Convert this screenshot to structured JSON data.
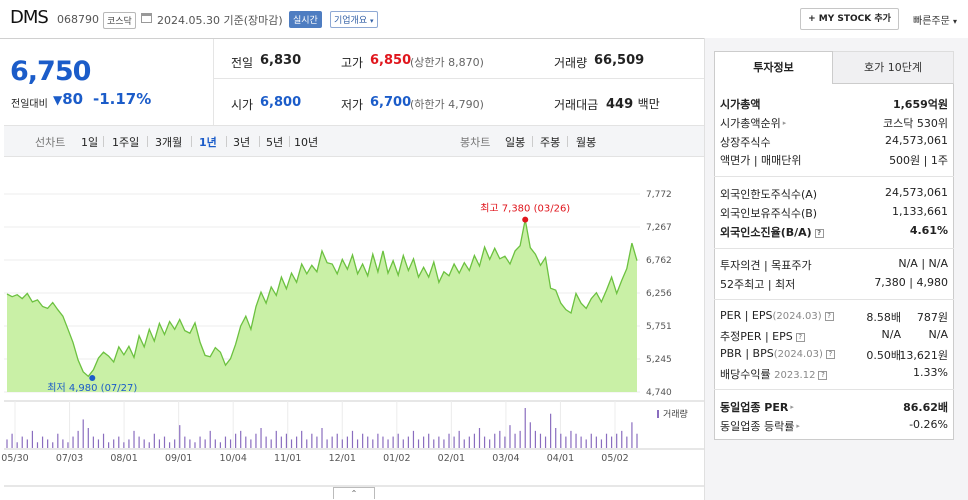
{
  "header": {
    "stock_name": "DMS",
    "stock_code": "068790",
    "market_badge": "코스닥",
    "date": "2024.05.30",
    "basis": "기준(장마감)",
    "realtime_badge": "실시간",
    "company_overview_label": "기업개요",
    "my_stock_button": "MY STOCK 추가",
    "quick_order_label": "빠른주문"
  },
  "price": {
    "current": "6,750",
    "change_label": "전일대비",
    "change_value": "80",
    "change_rate": "-1.17%"
  },
  "summary": {
    "prev_close_label": "전일",
    "prev_close": "6,830",
    "high_label": "고가",
    "high": "6,850",
    "upper_limit_label": "(상한가",
    "upper_limit": "8,870)",
    "volume_label": "거래량",
    "volume": "66,509",
    "open_label": "시가",
    "open": "6,800",
    "low_label": "저가",
    "low": "6,700",
    "lower_limit_label": "(하한가",
    "lower_limit": "4,790)",
    "amount_label": "거래대금",
    "amount": "449",
    "amount_unit": "백만"
  },
  "periods": {
    "line_label": "선차트",
    "line_options": [
      "1일",
      "1주일",
      "3개월",
      "1년",
      "3년",
      "5년",
      "10년"
    ],
    "selected": "1년",
    "candle_label": "봉차트",
    "candle_options": [
      "일봉",
      "주봉",
      "월봉"
    ]
  },
  "chart_data": {
    "type": "area",
    "x_tick_labels": [
      "05/30",
      "07/03",
      "08/01",
      "09/01",
      "10/04",
      "11/01",
      "12/01",
      "01/02",
      "02/01",
      "03/04",
      "04/01",
      "05/02"
    ],
    "y_ticks": [
      7772,
      7267,
      6762,
      6256,
      5751,
      5245,
      4740
    ],
    "ylim": [
      4740,
      7772
    ],
    "high_annotation": "최고 7,380 (03/26)",
    "low_annotation": "최저 4,980 (07/27)",
    "volume_label": "거래량",
    "prices": [
      6240,
      6200,
      6230,
      6170,
      6250,
      6120,
      6150,
      6050,
      6020,
      6110,
      6000,
      5900,
      5700,
      5500,
      5230,
      5050,
      4980,
      5080,
      5260,
      5350,
      5290,
      5200,
      5430,
      5310,
      5440,
      5270,
      5600,
      5430,
      5700,
      5520,
      5790,
      5620,
      5820,
      5700,
      5850,
      5680,
      5640,
      5800,
      5500,
      5300,
      5280,
      5420,
      5350,
      5150,
      5250,
      5470,
      5750,
      5900,
      5700,
      6050,
      6270,
      6100,
      6350,
      6220,
      6500,
      6320,
      6560,
      6420,
      6700,
      6550,
      6680,
      6580,
      6900,
      6720,
      6700,
      6550,
      6770,
      6620,
      6840,
      6550,
      6700,
      6520,
      6850,
      6580,
      6900,
      6560,
      6750,
      6530,
      6830,
      6600,
      6780,
      6500,
      6650,
      6500,
      6730,
      6420,
      6580,
      6520,
      6700,
      6560,
      6720,
      6600,
      6830,
      6670,
      6960,
      6770,
      6940,
      6780,
      6820,
      6700,
      6900,
      6980,
      7380,
      6950,
      6850,
      6680,
      6800,
      6330,
      6300,
      6100,
      6000,
      5950,
      6250,
      6100,
      6020,
      6170,
      6260,
      6120,
      6300,
      6500,
      6250,
      6450,
      6630,
      7020,
      6750
    ],
    "volumes": [
      3,
      5,
      2,
      4,
      3,
      6,
      2,
      4,
      3,
      2,
      5,
      3,
      2,
      4,
      6,
      10,
      7,
      4,
      3,
      5,
      2,
      3,
      4,
      2,
      3,
      6,
      4,
      3,
      2,
      5,
      3,
      4,
      2,
      3,
      8,
      4,
      3,
      2,
      4,
      3,
      6,
      3,
      2,
      4,
      3,
      5,
      6,
      4,
      3,
      5,
      7,
      4,
      3,
      6,
      4,
      5,
      3,
      4,
      6,
      3,
      5,
      4,
      7,
      3,
      4,
      5,
      3,
      4,
      6,
      3,
      5,
      4,
      3,
      5,
      4,
      3,
      4,
      5,
      3,
      4,
      6,
      3,
      4,
      5,
      3,
      4,
      3,
      5,
      4,
      6,
      3,
      4,
      5,
      7,
      4,
      3,
      5,
      6,
      4,
      8,
      5,
      6,
      14,
      9,
      6,
      5,
      4,
      12,
      7,
      5,
      4,
      6,
      5,
      4,
      3,
      5,
      4,
      3,
      5,
      4,
      5,
      6,
      4,
      9,
      5
    ]
  },
  "panel": {
    "tab_active": "투자정보",
    "tab_other": "호가 10단계",
    "rows": {
      "market_cap_label": "시가총액",
      "market_cap": "1,659억원",
      "market_cap_rank_label": "시가총액순위",
      "market_cap_rank": "코스닥 530위",
      "shares_label": "상장주식수",
      "shares": "24,573,061",
      "par_label": "액면가 | 매매단위",
      "par": "500원 | 1주",
      "foreign_limit_label": "외국인한도주식수(A)",
      "foreign_limit": "24,573,061",
      "foreign_hold_label": "외국인보유주식수(B)",
      "foreign_hold": "1,133,661",
      "foreign_ratio_label": "외국인소진율(B/A)",
      "foreign_ratio": "4.61%",
      "opinion_label": "투자의견 | 목표주가",
      "opinion": "N/A | N/A",
      "range52_label": "52주최고 | 최저",
      "range52": "7,380 | 4,980",
      "per_label": "PER | EPS",
      "per_period": "(2024.03)",
      "per": "8.58배",
      "eps": "787원",
      "est_label": "추정PER | EPS",
      "est_per": "N/A",
      "est_eps": "N/A",
      "pbr_label": "PBR | BPS",
      "pbr_period": "(2024.03)",
      "pbr": "0.50배",
      "bps": "13,621원",
      "div_label": "배당수익률",
      "div_period": "2023.12",
      "div": "1.33%",
      "sector_per_label": "동일업종 PER",
      "sector_per": "86.62배",
      "sector_rate_label": "동일업종 등락률",
      "sector_rate": "-0.26%"
    }
  },
  "colors": {
    "up": "#e0161d",
    "down": "#1b5cc9",
    "chart_line": "#6cc140",
    "chart_fill": "#c9f0a6"
  }
}
